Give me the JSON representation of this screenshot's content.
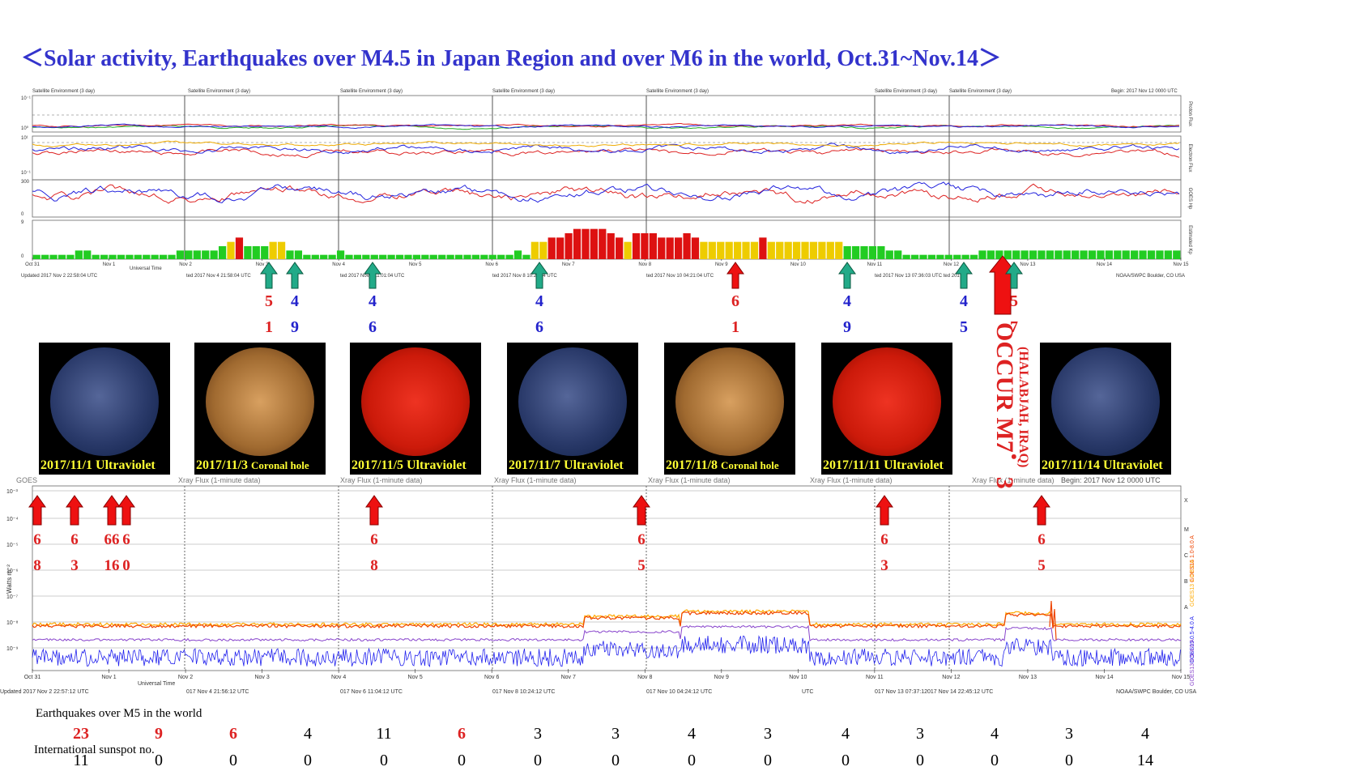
{
  "title": "＜Solar activity, Earthquakes over M4.5 in Japan Region and over M6 in the world, Oct.31~Nov.14＞",
  "colors": {
    "title": "#3333cc",
    "red": "#dd2222",
    "blue": "#2222cc",
    "teal": "#22aa88",
    "kp_green": "#22cc22",
    "kp_yellow": "#eecc00",
    "kp_red": "#dd1111"
  },
  "top_panel": {
    "header_labels": [
      "Satellite Environment (3 day)",
      "Satellite Environment (3 day)",
      "Satellite Environment (3 day)",
      "Satellite Environment (3 day)",
      "Satellite Environment (3 day)",
      "Satellite Environment (3 day)",
      "Satellite Environment (3 day)"
    ],
    "begin_label": "Begin:  2017 Nov 12 0000 UTC",
    "right_labels": [
      "Proton Flux",
      "Electron Flux",
      "GOES Hp",
      "Estimated Kp"
    ],
    "ytick_labels": [
      "10⁰",
      "10⁻¹",
      "10¹",
      "10⁻¹",
      "300",
      "0",
      "9",
      "0"
    ],
    "date_ticks": [
      "Oct 31",
      "Nov 1",
      "Nov 2",
      "Nov 3",
      "Nov 4",
      "Nov 5",
      "Nov 6",
      "Nov 7",
      "Nov 8",
      "Nov 9",
      "Nov 10",
      "Nov 11",
      "Nov 12",
      "Nov 13",
      "Nov 14",
      "Nov 15"
    ],
    "universal_time": "Universal Time",
    "updated_labels": [
      "Updated 2017 Nov  2 22:58:04 UTC",
      "ted 2017 Nov  4 21:58:04 UTC",
      "ted 2017 Nov  6 11:01:04 UTC",
      "ted 2017 Nov  8 10:24:04 UTC",
      "ted 2017 Nov 10 04:21:04 UTC",
      "ted 2017 Nov 13 07:36:03 UTC ted 2017",
      "NOAA/SWPC Boulder, CO USA"
    ]
  },
  "top_arrows": [
    {
      "type": "teal",
      "top": "5",
      "bottom": "1",
      "top_color": "red",
      "bottom_color": "red"
    },
    {
      "type": "teal",
      "top": "4",
      "bottom": "9",
      "top_color": "blue",
      "bottom_color": "blue"
    },
    {
      "type": "teal",
      "top": "4",
      "bottom": "6",
      "top_color": "blue",
      "bottom_color": "blue"
    },
    {
      "type": "teal",
      "top": "4",
      "bottom": "6",
      "top_color": "blue",
      "bottom_color": "blue"
    },
    {
      "type": "red",
      "top": "6",
      "bottom": "1",
      "top_color": "red",
      "bottom_color": "red"
    },
    {
      "type": "teal",
      "top": "4",
      "bottom": "9",
      "top_color": "blue",
      "bottom_color": "blue"
    },
    {
      "type": "teal",
      "top": "4",
      "bottom": "5",
      "top_color": "blue",
      "bottom_color": "blue"
    },
    {
      "type": "red-big",
      "top": "",
      "bottom": "",
      "top_color": "red",
      "bottom_color": "red"
    },
    {
      "type": "teal",
      "top": "5",
      "bottom": "7",
      "top_color": "red",
      "bottom_color": "red"
    }
  ],
  "sun_images": [
    {
      "caption": "2017/11/1 Ultraviolet",
      "kind": "uv"
    },
    {
      "caption": "2017/11/3 ",
      "caption_small": "Coronal hole",
      "kind": "coronal"
    },
    {
      "caption": "2017/11/5 Ultraviolet",
      "kind": "red"
    },
    {
      "caption": "2017/11/7 Ultraviolet",
      "kind": "uv"
    },
    {
      "caption": "2017/11/8 ",
      "caption_small": "Coronal hole",
      "kind": "coronal"
    },
    {
      "caption": "2017/11/11 Ultraviolet",
      "kind": "red"
    },
    {
      "caption": "2017/11/14 Ultraviolet",
      "kind": "uv"
    }
  ],
  "occur": {
    "main": "OCCUR M7．3",
    "sub": "(HALABJAH, IRAQ)"
  },
  "xray_panel": {
    "header_labels": [
      "GOES",
      "Xray Flux (1-minute data)",
      "Xray Flux (1-minute data)",
      "Xray Flux (1-minute data)",
      "Xray Flux (1-minute data)",
      "Xray Flux (1-minute data)",
      "Xray Flux (1-minute data)"
    ],
    "begin_label": "Begin:  2017 Nov 12 0000 UTC",
    "ylabel": "Watts m⁻²",
    "ytick_labels": [
      "10⁻³",
      "10⁻⁴",
      "10⁻⁵",
      "10⁻⁶",
      "10⁻⁷",
      "10⁻⁸",
      "10⁻⁹"
    ],
    "flare_classes": [
      "X",
      "M",
      "C",
      "B",
      "A"
    ],
    "legend": [
      "GOES15 1.0-8.0 A",
      "GOES13 1.0-8.0 A",
      "GOES15 0.5-4.0 A",
      "GOES13 0.5-4.0 A"
    ],
    "legend_colors": [
      "#ee4400",
      "#ffaa00",
      "#2222ee",
      "#8844cc"
    ],
    "date_ticks": [
      "Oct 31",
      "Nov 1",
      "Nov 2",
      "Nov 3",
      "Nov 4",
      "Nov 5",
      "Nov 6",
      "Nov 7",
      "Nov 8",
      "Nov 9",
      "Nov 10",
      "Nov 11",
      "Nov 12",
      "Nov 13",
      "Nov 14",
      "Nov 15"
    ],
    "universal_time": "Universal Time",
    "updated_labels": [
      "Updated 2017 Nov  2 22:57:12 UTC",
      "017 Nov  4 21:56:12 UTC",
      "017 Nov  6 11:04:12 UTC",
      "017 Nov  8 10:24:12 UTC",
      "017 Nov 10 04:24:12 UTC",
      "UTC",
      "017 Nov 13 07:37:12017 Nov 14 22:45:12 UTC",
      "NOAA/SWPC Boulder, CO USA"
    ]
  },
  "xray_arrows": [
    {
      "top": "6",
      "bottom": "8"
    },
    {
      "top": "6",
      "bottom": "3"
    },
    {
      "top": "66",
      "bottom": "16"
    },
    {
      "top": "6",
      "bottom": "0"
    },
    {
      "top": "6",
      "bottom": "8"
    },
    {
      "top": "6",
      "bottom": "5"
    },
    {
      "top": "6",
      "bottom": "3"
    },
    {
      "top": "6",
      "bottom": "5"
    }
  ],
  "earthquakes_label": "Earthquakes over M5 in the world",
  "sunspot_label": "International sunspot no.",
  "chart_data": [
    {
      "type": "bar",
      "title": "Satellite Environment (3 day)",
      "ylabel": "Estimated Kp",
      "ylim": [
        0,
        9
      ],
      "note": "Estimated Kp, 3-hour bars Oct 31 – Nov 14 (approximate)",
      "values": [
        1,
        1,
        1,
        1,
        1,
        2,
        2,
        1,
        1,
        1,
        1,
        1,
        1,
        1,
        1,
        1,
        1,
        2,
        2,
        2,
        2,
        2,
        3,
        4,
        5,
        3,
        3,
        3,
        4,
        4,
        2,
        2,
        1,
        1,
        1,
        1,
        2,
        1,
        1,
        1,
        1,
        1,
        1,
        1,
        1,
        1,
        1,
        1,
        1,
        1,
        1,
        1,
        1,
        1,
        1,
        1,
        1,
        2,
        1,
        4,
        4,
        5,
        5,
        6,
        7,
        7,
        7,
        7,
        6,
        5,
        4,
        6,
        6,
        6,
        5,
        5,
        5,
        6,
        5,
        4,
        4,
        4,
        4,
        4,
        4,
        4,
        5,
        4,
        4,
        4,
        4,
        4,
        4,
        4,
        4,
        4,
        3,
        3,
        3,
        3,
        3,
        2,
        2,
        1,
        1,
        1,
        1,
        1,
        1,
        1,
        1,
        1,
        2,
        2,
        2,
        2,
        2,
        2,
        2,
        2,
        2,
        2,
        2,
        2,
        2,
        2,
        2,
        2,
        2,
        2,
        2,
        2,
        2,
        2,
        2,
        2
      ],
      "categories_start": "Oct 31",
      "categories_end": "Nov 15"
    },
    {
      "type": "table",
      "title": "Earthquakes over M5 in the world / International sunspot no.",
      "columns": [
        "Oct 31",
        "Nov 1",
        "Nov 2",
        "Nov 3",
        "Nov 4",
        "Nov 5",
        "Nov 6",
        "Nov 7",
        "Nov 8",
        "Nov 9",
        "Nov 10",
        "Nov 11",
        "Nov 12",
        "Nov 13",
        "Nov 14"
      ],
      "earthquakes": [
        23,
        9,
        6,
        4,
        11,
        6,
        3,
        3,
        4,
        3,
        4,
        3,
        4,
        3,
        4
      ],
      "earthquakes_highlight": [
        true,
        true,
        true,
        false,
        false,
        true,
        false,
        false,
        false,
        false,
        false,
        false,
        false,
        false,
        false
      ],
      "sunspots": [
        11,
        0,
        0,
        0,
        0,
        0,
        0,
        0,
        0,
        0,
        0,
        0,
        0,
        0,
        14
      ]
    }
  ]
}
